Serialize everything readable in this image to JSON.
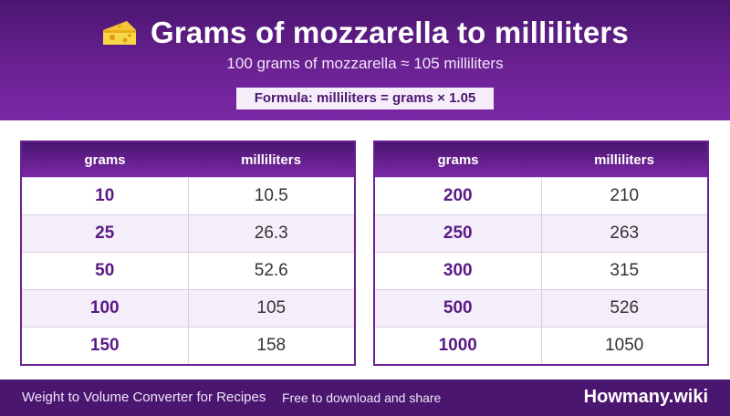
{
  "header": {
    "title": "Grams of mozzarella to milliliters",
    "icon": "cheese-icon",
    "subtitle": "100 grams of mozzarella ≈ 105 milliliters",
    "formula": "Formula: milliliters = grams × 1.05"
  },
  "tables": {
    "left": {
      "col_grams": "grams",
      "col_ml": "milliliters",
      "rows": [
        {
          "grams": "10",
          "ml": "10.5"
        },
        {
          "grams": "25",
          "ml": "26.3"
        },
        {
          "grams": "50",
          "ml": "52.6"
        },
        {
          "grams": "100",
          "ml": "105"
        },
        {
          "grams": "150",
          "ml": "158"
        }
      ]
    },
    "right": {
      "col_grams": "grams",
      "col_ml": "milliliters",
      "rows": [
        {
          "grams": "200",
          "ml": "210"
        },
        {
          "grams": "250",
          "ml": "263"
        },
        {
          "grams": "300",
          "ml": "315"
        },
        {
          "grams": "500",
          "ml": "526"
        },
        {
          "grams": "1000",
          "ml": "1050"
        }
      ]
    }
  },
  "footer": {
    "left_text": "Weight to Volume Converter for Recipes",
    "middle_text": "Free to download and share",
    "brand": "Howmany.wiki"
  },
  "colors": {
    "primary": "#6a2192",
    "dark": "#4a1670",
    "alt_row": "#f4eefa"
  }
}
